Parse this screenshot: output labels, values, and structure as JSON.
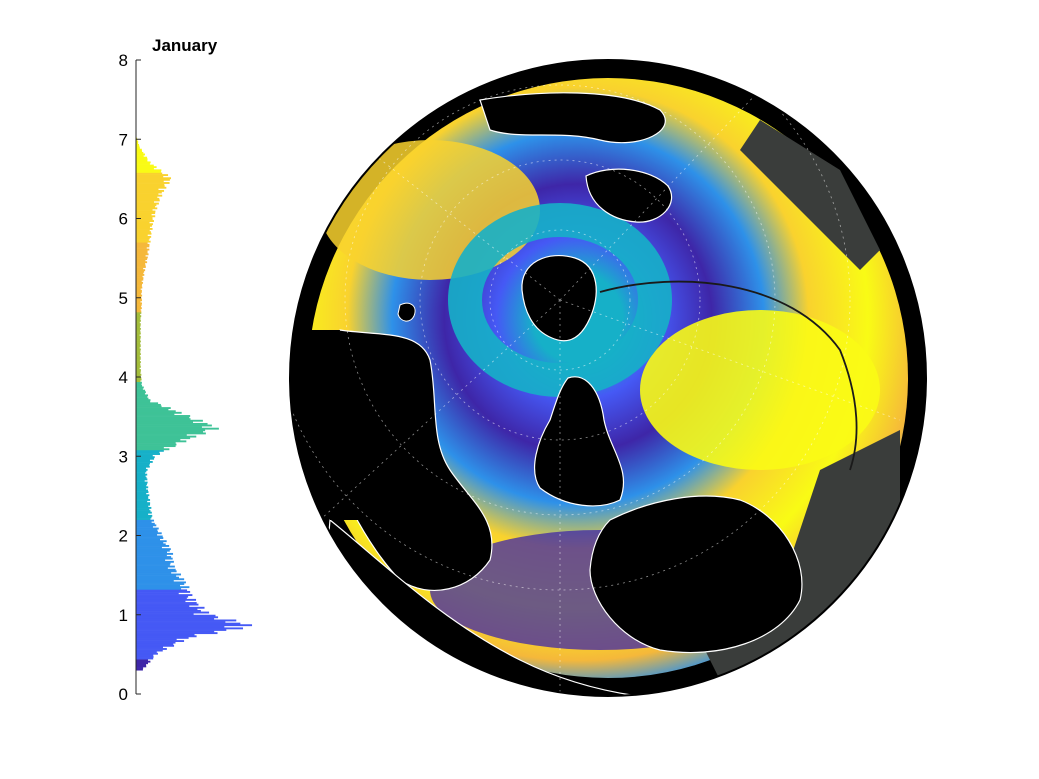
{
  "chart_data": [
    {
      "type": "histogram",
      "orientation": "horizontal",
      "title": "January",
      "ylim": [
        0,
        8
      ],
      "yticks": [
        "0",
        "1",
        "2",
        "3",
        "4",
        "5",
        "6",
        "7",
        "8"
      ],
      "colormap": "parula",
      "colors": [
        "#3e26a8",
        "#4559f5",
        "#2e91e9",
        "#16b0c8",
        "#3ec297",
        "#a3bd3b",
        "#f5b83a",
        "#f9d22e",
        "#f9fb15"
      ],
      "bins": [
        {
          "y": 0.3,
          "count": 0.06
        },
        {
          "y": 0.5,
          "count": 0.18
        },
        {
          "y": 0.7,
          "count": 0.45
        },
        {
          "y": 0.85,
          "count": 1.0
        },
        {
          "y": 1.0,
          "count": 0.62
        },
        {
          "y": 1.2,
          "count": 0.48
        },
        {
          "y": 1.4,
          "count": 0.42
        },
        {
          "y": 1.6,
          "count": 0.32
        },
        {
          "y": 1.8,
          "count": 0.3
        },
        {
          "y": 2.0,
          "count": 0.22
        },
        {
          "y": 2.2,
          "count": 0.14
        },
        {
          "y": 2.4,
          "count": 0.12
        },
        {
          "y": 2.6,
          "count": 0.1
        },
        {
          "y": 2.8,
          "count": 0.09
        },
        {
          "y": 3.0,
          "count": 0.17
        },
        {
          "y": 3.2,
          "count": 0.44
        },
        {
          "y": 3.35,
          "count": 0.7
        },
        {
          "y": 3.5,
          "count": 0.45
        },
        {
          "y": 3.7,
          "count": 0.12
        },
        {
          "y": 3.9,
          "count": 0.05
        },
        {
          "y": 4.1,
          "count": 0.04
        },
        {
          "y": 4.3,
          "count": 0.04
        },
        {
          "y": 4.5,
          "count": 0.04
        },
        {
          "y": 4.7,
          "count": 0.04
        },
        {
          "y": 4.9,
          "count": 0.05
        },
        {
          "y": 5.1,
          "count": 0.05
        },
        {
          "y": 5.3,
          "count": 0.07
        },
        {
          "y": 5.5,
          "count": 0.1
        },
        {
          "y": 5.7,
          "count": 0.12
        },
        {
          "y": 5.9,
          "count": 0.14
        },
        {
          "y": 6.1,
          "count": 0.17
        },
        {
          "y": 6.3,
          "count": 0.22
        },
        {
          "y": 6.5,
          "count": 0.3
        },
        {
          "y": 6.7,
          "count": 0.12
        },
        {
          "y": 6.9,
          "count": 0.03
        },
        {
          "y": 7.0,
          "count": 0.01
        }
      ]
    },
    {
      "type": "heatmap",
      "projection": "polar-orthographic",
      "colormap": "parula",
      "clim": [
        0,
        8
      ],
      "land_color": "#000000",
      "coastline_color": "#ffffff",
      "ice_color": "#3a3d3b",
      "grid": true
    }
  ]
}
